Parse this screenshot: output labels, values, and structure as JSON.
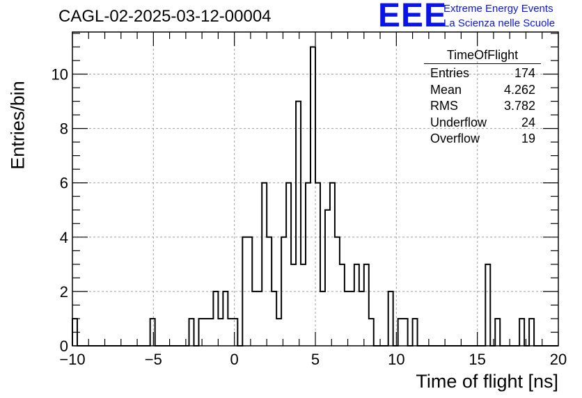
{
  "header": {
    "title": "CAGL-02-2025-03-12-00004",
    "logo": {
      "mark": "EEE",
      "line1": "Extreme Energy Events",
      "line2": "La Scienza nelle Scuole"
    }
  },
  "stats_box": {
    "title": "TimeOfFlight",
    "rows": [
      {
        "label": "Entries",
        "value": "174"
      },
      {
        "label": "Mean",
        "value": "4.262"
      },
      {
        "label": "RMS",
        "value": "3.782"
      },
      {
        "label": "Underflow",
        "value": "24"
      },
      {
        "label": "Overflow",
        "value": "19"
      }
    ]
  },
  "colors": {
    "line": "#000000",
    "grid": "#a0a0a0",
    "logo": "#0a14e6"
  },
  "chart_data": {
    "type": "bar",
    "style": "step-histogram",
    "xlabel": "Time of flight [ns]",
    "ylabel": "Entries/bin",
    "xlim": [
      -10,
      20
    ],
    "ylim": [
      0,
      11.55
    ],
    "xticks": [
      -10,
      -5,
      0,
      5,
      10,
      15,
      20
    ],
    "yticks": [
      0,
      2,
      4,
      6,
      8,
      10
    ],
    "grid": true,
    "bin_width": 0.3,
    "bin_start": -10,
    "values": [
      1,
      0,
      0,
      0,
      0,
      0,
      0,
      0,
      0,
      0,
      0,
      0,
      0,
      0,
      0,
      0,
      1,
      0,
      0,
      0,
      0,
      0,
      0,
      0,
      1,
      0,
      1,
      1,
      1,
      2,
      1,
      2,
      1,
      1,
      0,
      4,
      4,
      2,
      2,
      6,
      4,
      2,
      1,
      4,
      6,
      3,
      9,
      3,
      6,
      11,
      6,
      2,
      5,
      6,
      4,
      3,
      2,
      2,
      3,
      2,
      3,
      1,
      0,
      0,
      0,
      2,
      0,
      1,
      1,
      0,
      1,
      0,
      0,
      0,
      0,
      0,
      0,
      0,
      0,
      0,
      0,
      0,
      0,
      0,
      0,
      3,
      0,
      1,
      0,
      0,
      0,
      0,
      1,
      0,
      1,
      0,
      0,
      0,
      0,
      0
    ]
  }
}
